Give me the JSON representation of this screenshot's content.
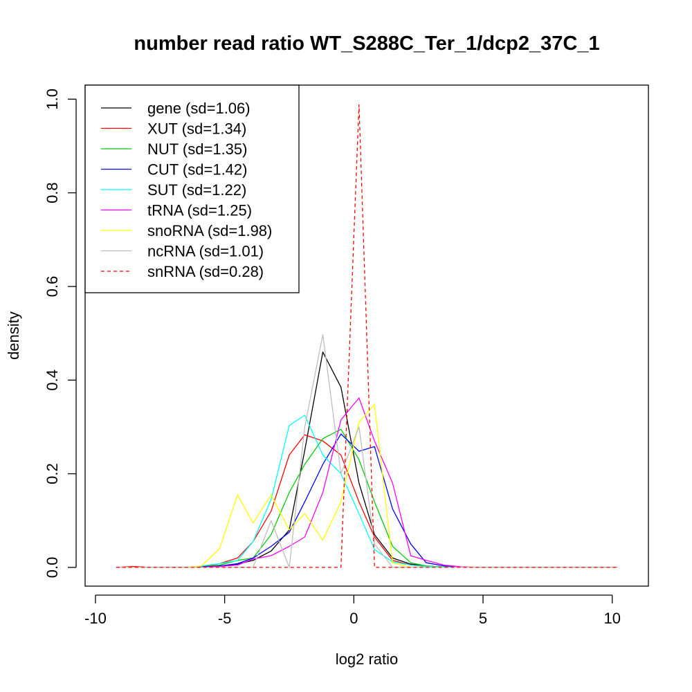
{
  "chart_data": {
    "type": "line",
    "title": "number read ratio WT_S288C_Ter_1/dcp2_37C_1",
    "xlabel": "log2 ratio",
    "ylabel": "density",
    "xlim": [
      -10.4,
      11.4
    ],
    "ylim": [
      -0.04,
      1.03
    ],
    "x_ticks": [
      -10,
      -5,
      0,
      5,
      10
    ],
    "x_tick_labels": [
      "-10",
      "-5",
      "0",
      "5",
      "10"
    ],
    "y_ticks": [
      0.0,
      0.2,
      0.4,
      0.6,
      0.8,
      1.0
    ],
    "y_tick_labels": [
      "0.0",
      "0.2",
      "0.4",
      "0.6",
      "0.8",
      "1.0"
    ],
    "legend_position": "top-left",
    "grid": false,
    "series": [
      {
        "name": "gene (sd=1.06)",
        "color": "#000000",
        "dash": "solid",
        "x": [
          -9.2,
          -8.5,
          -7.9,
          -7.2,
          -6.5,
          -5.9,
          -5.2,
          -4.5,
          -3.9,
          -3.2,
          -2.5,
          -1.9,
          -1.2,
          -0.5,
          0.2,
          0.8,
          1.5,
          2.2,
          2.8,
          3.5,
          4.2,
          4.8,
          5.5,
          6.2,
          6.8,
          7.5,
          8.2,
          8.8,
          9.5,
          10.2
        ],
        "y": [
          0,
          0,
          0,
          0,
          0,
          0,
          0.003,
          0.007,
          0.015,
          0.035,
          0.08,
          0.25,
          0.46,
          0.385,
          0.18,
          0.07,
          0.02,
          0.007,
          0.003,
          0.001,
          0,
          0,
          0,
          0,
          0,
          0,
          0,
          0,
          0,
          0
        ]
      },
      {
        "name": "XUT (sd=1.34)",
        "color": "#ff0000",
        "dash": "solid",
        "x": [
          -9.2,
          -8.5,
          -7.9,
          -7.2,
          -6.5,
          -5.9,
          -5.2,
          -4.5,
          -3.9,
          -3.2,
          -2.5,
          -1.9,
          -1.2,
          -0.5,
          0.2,
          0.8,
          1.5,
          2.2,
          2.8,
          3.5,
          4.2,
          4.8,
          5.5,
          6.2,
          6.8,
          7.5,
          8.2,
          8.8,
          9.5,
          10.2
        ],
        "y": [
          0,
          0.002,
          0,
          0,
          0,
          0.001,
          0.008,
          0.02,
          0.055,
          0.12,
          0.24,
          0.283,
          0.27,
          0.24,
          0.14,
          0.065,
          0.015,
          0.005,
          0.002,
          0.001,
          0,
          0,
          0,
          0,
          0,
          0,
          0,
          0,
          0,
          0
        ]
      },
      {
        "name": "NUT (sd=1.35)",
        "color": "#00cd00",
        "dash": "solid",
        "x": [
          -9.2,
          -8.5,
          -7.9,
          -7.2,
          -6.5,
          -5.9,
          -5.2,
          -4.5,
          -3.9,
          -3.2,
          -2.5,
          -1.9,
          -1.2,
          -0.5,
          0.2,
          0.8,
          1.5,
          2.2,
          2.8,
          3.5,
          4.2,
          4.8,
          5.5,
          6.2,
          6.8,
          7.5,
          8.2,
          8.8,
          9.5,
          10.2
        ],
        "y": [
          0,
          0,
          0,
          0,
          0,
          0.001,
          0.005,
          0.015,
          0.02,
          0.07,
          0.16,
          0.22,
          0.275,
          0.295,
          0.23,
          0.14,
          0.045,
          0.01,
          0.003,
          0.001,
          0,
          0,
          0,
          0,
          0,
          0,
          0,
          0,
          0,
          0
        ]
      },
      {
        "name": "CUT (sd=1.42)",
        "color": "#0000ff",
        "dash": "solid",
        "x": [
          -9.2,
          -8.5,
          -7.9,
          -7.2,
          -6.5,
          -5.9,
          -5.2,
          -4.5,
          -3.9,
          -3.2,
          -2.5,
          -1.9,
          -1.2,
          -0.5,
          0.2,
          0.8,
          1.5,
          2.2,
          2.8,
          3.5,
          4.2,
          4.8,
          5.5,
          6.2,
          6.8,
          7.5,
          8.2,
          8.8,
          9.5,
          10.2
        ],
        "y": [
          0,
          0,
          0,
          0,
          0,
          0.001,
          0.003,
          0.008,
          0.02,
          0.045,
          0.075,
          0.14,
          0.22,
          0.285,
          0.248,
          0.258,
          0.125,
          0.05,
          0.01,
          0.003,
          0.001,
          0,
          0,
          0,
          0,
          0,
          0,
          0,
          0,
          0
        ]
      },
      {
        "name": "SUT (sd=1.22)",
        "color": "#00ffff",
        "dash": "solid",
        "x": [
          -9.2,
          -8.5,
          -7.9,
          -7.2,
          -6.5,
          -5.9,
          -5.2,
          -4.5,
          -3.9,
          -3.2,
          -2.5,
          -1.9,
          -1.2,
          -0.5,
          0.2,
          0.8,
          1.5,
          2.2,
          2.8,
          3.5,
          4.2,
          4.8,
          5.5,
          6.2,
          6.8,
          7.5,
          8.2,
          8.8,
          9.5,
          10.2
        ],
        "y": [
          0,
          0,
          0,
          0,
          0,
          0.003,
          0.008,
          0.015,
          0.055,
          0.145,
          0.303,
          0.325,
          0.24,
          0.2,
          0.115,
          0.038,
          0.012,
          0.005,
          0.002,
          0.001,
          0,
          0,
          0,
          0,
          0,
          0,
          0,
          0,
          0,
          0
        ]
      },
      {
        "name": "tRNA (sd=1.25)",
        "color": "#ff00ff",
        "dash": "solid",
        "x": [
          -9.2,
          -8.5,
          -7.9,
          -7.2,
          -6.5,
          -5.9,
          -5.2,
          -4.5,
          -3.9,
          -3.2,
          -2.5,
          -1.9,
          -1.2,
          -0.5,
          0.2,
          0.8,
          1.5,
          2.2,
          2.8,
          3.5,
          4.2,
          4.8,
          5.5,
          6.2,
          6.8,
          7.5,
          8.2,
          8.8,
          9.5,
          10.2
        ],
        "y": [
          0,
          0,
          0,
          0,
          0,
          0,
          0.002,
          0.005,
          0.018,
          0.025,
          0.045,
          0.065,
          0.16,
          0.315,
          0.362,
          0.27,
          0.18,
          0.025,
          0.015,
          0.005,
          0.001,
          0,
          0,
          0,
          0,
          0,
          0,
          0,
          0,
          0
        ]
      },
      {
        "name": "snoRNA (sd=1.98)",
        "color": "#ffff00",
        "dash": "solid",
        "x": [
          -9.2,
          -8.5,
          -7.9,
          -7.2,
          -6.5,
          -5.9,
          -5.2,
          -4.5,
          -3.9,
          -3.2,
          -2.5,
          -1.9,
          -1.2,
          -0.5,
          0.2,
          0.8,
          1.5,
          2.2,
          2.8,
          3.5,
          4.2,
          4.8,
          5.5,
          6.2,
          6.8,
          7.5,
          8.2,
          8.8,
          9.5,
          10.2
        ],
        "y": [
          0,
          0,
          0,
          0,
          0,
          0.003,
          0.04,
          0.155,
          0.095,
          0.155,
          0.08,
          0.115,
          0.058,
          0.14,
          0.31,
          0.348,
          0.01,
          0,
          0,
          0,
          0,
          0,
          0,
          0,
          0,
          0,
          0,
          0,
          0,
          0
        ]
      },
      {
        "name": "ncRNA (sd=1.01)",
        "color": "#bebebe",
        "dash": "solid",
        "x": [
          -9.2,
          -8.5,
          -7.9,
          -7.2,
          -6.5,
          -5.9,
          -5.2,
          -4.5,
          -3.9,
          -3.2,
          -2.5,
          -1.9,
          -1.2,
          -0.5,
          0.2,
          0.8,
          1.5,
          2.2,
          2.8,
          3.5,
          4.2,
          4.8,
          5.5,
          6.2,
          6.8,
          7.5,
          8.2,
          8.8,
          9.5,
          10.2
        ],
        "y": [
          0,
          0,
          0,
          0,
          0,
          0,
          0,
          0,
          0,
          0.1,
          0,
          0.3,
          0.497,
          0.2,
          0.3,
          0.05,
          0,
          0,
          0,
          0,
          0,
          0,
          0,
          0,
          0,
          0,
          0,
          0,
          0,
          0
        ]
      },
      {
        "name": "snRNA (sd=0.28)",
        "color": "#ff0000",
        "dash": "dashed",
        "x": [
          -9.2,
          -8.5,
          -7.9,
          -7.2,
          -6.5,
          -5.9,
          -5.2,
          -4.5,
          -3.9,
          -3.2,
          -2.5,
          -1.9,
          -1.2,
          -0.5,
          0.2,
          0.8,
          1.5,
          2.2,
          2.8,
          3.5,
          4.2,
          4.8,
          5.5,
          6.2,
          6.8,
          7.5,
          8.2,
          8.8,
          9.5,
          10.2
        ],
        "y": [
          0,
          0,
          0,
          0,
          0,
          0,
          0,
          0,
          0,
          0,
          0,
          0,
          0,
          0,
          0.988,
          0,
          0,
          0,
          0,
          0,
          0,
          0,
          0,
          0,
          0,
          0,
          0,
          0,
          0,
          0
        ]
      }
    ]
  }
}
